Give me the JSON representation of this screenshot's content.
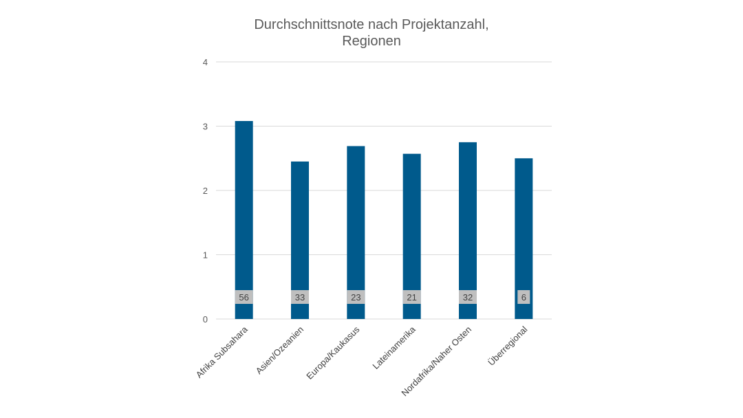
{
  "chart_data": {
    "type": "bar",
    "title_lines": [
      "Durchschnittsnote nach Projektanzahl,",
      "Regionen"
    ],
    "categories": [
      "Afrika Subsahara",
      "Asien/Ozeanien",
      "Europa/Kaukasus",
      "Lateinamerika",
      "Nordafrika/Naher Osten",
      "Überregional"
    ],
    "values": [
      3.08,
      2.45,
      2.69,
      2.57,
      2.75,
      2.5
    ],
    "data_labels": [
      "56",
      "33",
      "23",
      "21",
      "32",
      "6"
    ],
    "xlabel": "",
    "ylabel": "",
    "ylim": [
      0,
      4
    ],
    "yticks": [
      "0",
      "1",
      "2",
      "3",
      "4"
    ],
    "grid": true,
    "legend": "none",
    "colors": {
      "bar": "#005A8C",
      "gridline": "#D9D9D9",
      "data_label_bg": "#BFBFBF"
    }
  }
}
